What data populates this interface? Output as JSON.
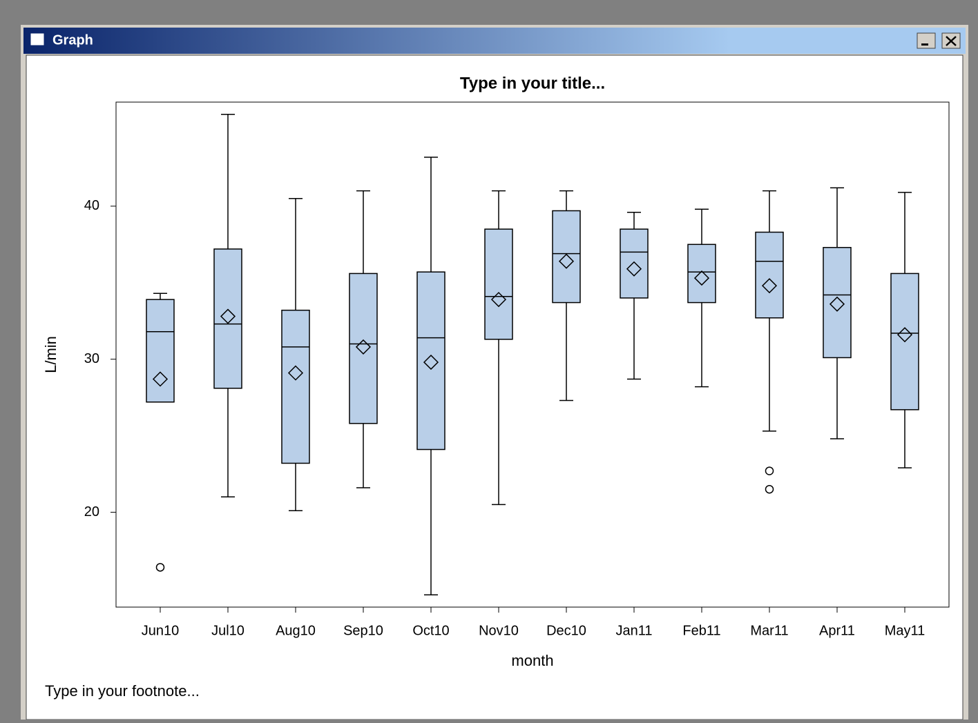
{
  "window": {
    "title": "Graph"
  },
  "chart_data": {
    "type": "box",
    "title": "Type in your title...",
    "footnote": "Type in your footnote...",
    "x_label": "month",
    "y_label": "L/min",
    "categories": [
      "Jun10",
      "Jul10",
      "Aug10",
      "Sep10",
      "Oct10",
      "Nov10",
      "Dec10",
      "Jan11",
      "Feb11",
      "Mar11",
      "Apr11",
      "May11"
    ],
    "min": [
      27.2,
      21.0,
      20.1,
      21.6,
      14.6,
      20.5,
      27.3,
      28.7,
      28.2,
      25.3,
      24.8,
      22.9
    ],
    "q1": [
      27.2,
      28.1,
      23.2,
      25.8,
      24.1,
      31.3,
      33.7,
      34.0,
      33.7,
      32.7,
      30.1,
      26.7
    ],
    "median": [
      31.8,
      32.3,
      30.8,
      31.0,
      31.4,
      34.1,
      36.9,
      37.0,
      35.7,
      36.4,
      34.2,
      31.7
    ],
    "q3": [
      33.9,
      37.2,
      33.2,
      35.6,
      35.7,
      38.5,
      39.7,
      38.5,
      37.5,
      38.3,
      37.3,
      35.6
    ],
    "max": [
      34.3,
      46.0,
      40.5,
      41.0,
      43.2,
      41.0,
      41.0,
      39.6,
      39.8,
      41.0,
      41.2,
      40.9
    ],
    "mean": [
      28.7,
      32.8,
      29.1,
      30.8,
      29.8,
      33.9,
      36.4,
      35.9,
      35.3,
      34.8,
      33.6,
      31.6
    ],
    "outliers": [
      [
        16.4
      ],
      [],
      [],
      [],
      [],
      [],
      [],
      [],
      [],
      [
        22.7,
        21.5
      ],
      [],
      []
    ],
    "color": "#b9cfe8",
    "ylim": [
      13.8,
      46.8
    ],
    "yticks": [
      20,
      30,
      40
    ]
  }
}
